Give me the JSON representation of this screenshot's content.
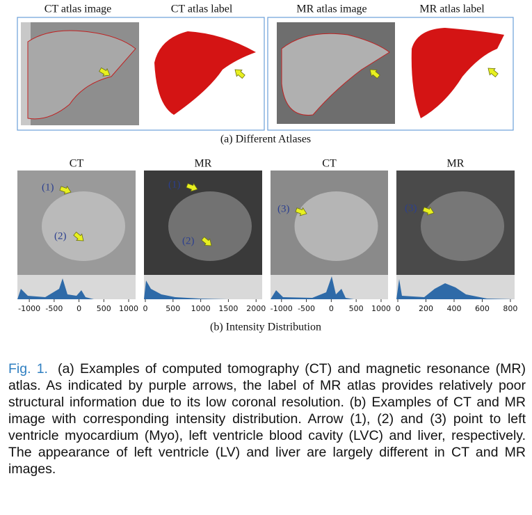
{
  "atlases": {
    "labels": [
      "CT atlas image",
      "CT atlas label",
      "MR atlas image",
      "MR atlas label"
    ],
    "caption": "(a) Different Atlases"
  },
  "intensity": {
    "panels": [
      {
        "title": "CT",
        "annotations": [
          "(1)",
          "(2)"
        ],
        "xlim": [
          -1240,
          1140
        ],
        "xticks": [
          -1000,
          -500,
          0,
          500,
          1000
        ]
      },
      {
        "title": "MR",
        "annotations": [
          "(1)",
          "(2)"
        ],
        "xlim": [
          -25,
          2110
        ],
        "xticks": [
          0,
          500,
          1000,
          1500,
          2000
        ]
      },
      {
        "title": "CT",
        "annotations": [
          "(3)"
        ],
        "xlim": [
          -1220,
          1140
        ],
        "xticks": [
          -1000,
          -500,
          0,
          500,
          1000
        ]
      },
      {
        "title": "MR",
        "annotations": [
          "(3)"
        ],
        "xlim": [
          -10,
          830
        ],
        "xticks": [
          0,
          200,
          400,
          600,
          800
        ]
      }
    ],
    "caption": "(b) Intensity Distribution"
  },
  "figure_caption": {
    "label": "Fig. 1.",
    "text": "(a) Examples of computed tomography (CT) and magnetic resonance (MR) atlas. As indicated by purple arrows, the label of MR atlas provides relatively poor structural information due to its low coronal resolution. (b) Examples of CT and MR image with corresponding intensity distribution. Arrow (1), (2) and (3) point to left ventricle myocardium (Myo), left ventricle blood cavity (LVC) and liver, respectively. The appearance of left ventricle (LV) and liver are largely different in CT and MR images."
  }
}
